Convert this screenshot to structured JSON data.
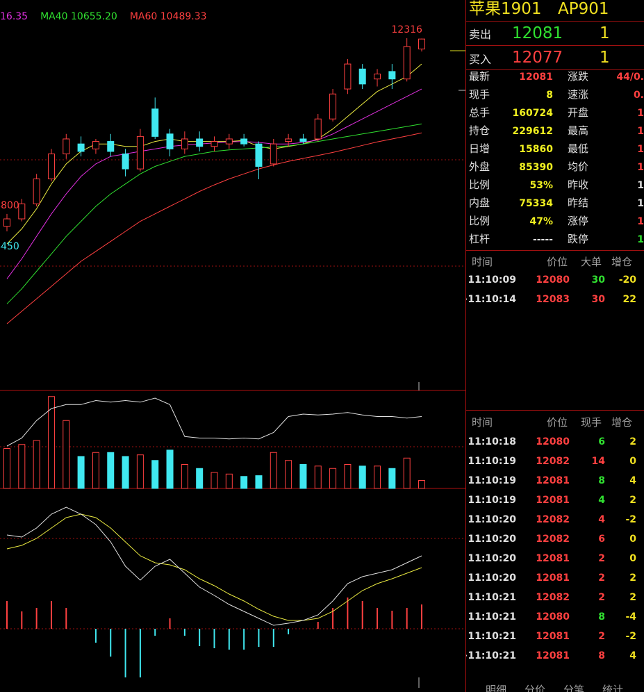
{
  "price_panel": {
    "ma_labels": [
      {
        "text": "16.35",
        "color": "#e030e0"
      },
      {
        "text": "MA40 10655.20",
        "color": "#30e030"
      },
      {
        "text": "MA60 10489.33",
        "color": "#ff4040"
      }
    ],
    "ylim": [
      5293,
      13081
    ],
    "candles": [
      {
        "open": 8550,
        "close": 8700,
        "high": 8800,
        "low": 8450
      },
      {
        "open": 8700,
        "close": 9000,
        "high": 9100,
        "low": 8650
      },
      {
        "open": 9000,
        "close": 9500,
        "high": 9600,
        "low": 8950
      },
      {
        "open": 9500,
        "close": 10000,
        "high": 10100,
        "low": 9450
      },
      {
        "open": 10000,
        "close": 10300,
        "high": 10400,
        "low": 9900
      },
      {
        "open": 10200,
        "close": 10050,
        "high": 10350,
        "low": 9950
      },
      {
        "open": 10100,
        "close": 10250,
        "high": 10300,
        "low": 10000
      },
      {
        "open": 10250,
        "close": 10050,
        "high": 10400,
        "low": 9950
      },
      {
        "open": 10000,
        "close": 9700,
        "high": 10100,
        "low": 9550
      },
      {
        "open": 9700,
        "close": 10350,
        "high": 10500,
        "low": 9650
      },
      {
        "open": 10900,
        "close": 10350,
        "high": 11129,
        "low": 10300
      },
      {
        "open": 10400,
        "close": 10100,
        "high": 10500,
        "low": 9950
      },
      {
        "open": 10100,
        "close": 10300,
        "high": 10450,
        "low": 10000
      },
      {
        "open": 10300,
        "close": 10150,
        "high": 10450,
        "low": 10050
      },
      {
        "open": 10150,
        "close": 10250,
        "high": 10350,
        "low": 10050
      },
      {
        "open": 10200,
        "close": 10300,
        "high": 10400,
        "low": 10100
      },
      {
        "open": 10300,
        "close": 10200,
        "high": 10400,
        "low": 10150
      },
      {
        "open": 10200,
        "close": 9750,
        "high": 10250,
        "low": 9493
      },
      {
        "open": 9800,
        "close": 10200,
        "high": 10300,
        "low": 9750
      },
      {
        "open": 10250,
        "close": 10300,
        "high": 10400,
        "low": 10150
      },
      {
        "open": 10300,
        "close": 10250,
        "high": 10400,
        "low": 10200
      },
      {
        "open": 10300,
        "close": 10700,
        "high": 10800,
        "low": 10250
      },
      {
        "open": 10700,
        "close": 11200,
        "high": 11300,
        "low": 10650
      },
      {
        "open": 11300,
        "close": 11800,
        "high": 11900,
        "low": 11200
      },
      {
        "open": 11700,
        "close": 11400,
        "high": 11800,
        "low": 11300
      },
      {
        "open": 11500,
        "close": 11600,
        "high": 11700,
        "low": 11350
      },
      {
        "open": 11650,
        "close": 11500,
        "high": 11800,
        "low": 11300
      },
      {
        "open": 11500,
        "close": 12150,
        "high": 12316,
        "low": 11450
      },
      {
        "open": 12100,
        "close": 12300,
        "high": 12310,
        "low": 12050
      }
    ],
    "ma_series": [
      {
        "color": "#e8e840",
        "values": [
          8200,
          8500,
          8900,
          9400,
          9800,
          10050,
          10200,
          10200,
          10150,
          10150,
          10250,
          10300,
          10250,
          10250,
          10250,
          10250,
          10270,
          10150,
          10100,
          10150,
          10200,
          10300,
          10500,
          10750,
          11000,
          11250,
          11400,
          11550,
          11800
        ]
      },
      {
        "color": "#e030e0",
        "values": [
          7500,
          7900,
          8350,
          8800,
          9200,
          9550,
          9800,
          9950,
          10000,
          10050,
          10100,
          10150,
          10180,
          10200,
          10220,
          10240,
          10250,
          10230,
          10200,
          10200,
          10230,
          10280,
          10400,
          10550,
          10700,
          10850,
          11000,
          11150,
          11300
        ]
      },
      {
        "color": "#30e030",
        "values": [
          7000,
          7300,
          7650,
          8000,
          8350,
          8650,
          8950,
          9200,
          9400,
          9600,
          9750,
          9850,
          9950,
          10000,
          10050,
          10080,
          10100,
          10120,
          10140,
          10160,
          10200,
          10250,
          10300,
          10350,
          10400,
          10450,
          10500,
          10550,
          10600
        ]
      },
      {
        "color": "#ff4040",
        "values": [
          6600,
          6850,
          7100,
          7350,
          7600,
          7850,
          8050,
          8250,
          8450,
          8650,
          8800,
          8950,
          9100,
          9250,
          9380,
          9500,
          9600,
          9700,
          9780,
          9850,
          9910,
          9970,
          10030,
          10100,
          10170,
          10240,
          10300,
          10360,
          10420
        ]
      }
    ]
  },
  "volume_panel": {
    "ylim": [
      0,
      120
    ],
    "values": [
      50,
      55,
      60,
      115,
      85,
      40,
      45,
      45,
      40,
      42,
      35,
      48,
      30,
      25,
      20,
      18,
      15,
      16,
      45,
      35,
      30,
      28,
      25,
      30,
      28,
      28,
      25,
      38,
      10
    ],
    "line": [
      53,
      63,
      85,
      100,
      105,
      105,
      110,
      108,
      110,
      108,
      113,
      105,
      65,
      63,
      63,
      62,
      63,
      62,
      70,
      90,
      93,
      92,
      93,
      95,
      92,
      90,
      90,
      88,
      90
    ]
  },
  "macd_panel": {
    "ylim": [
      -85,
      200
    ],
    "dif": [
      135,
      132,
      145,
      165,
      175,
      165,
      150,
      125,
      90,
      70,
      90,
      100,
      80,
      60,
      48,
      35,
      25,
      15,
      5,
      8,
      12,
      20,
      40,
      65,
      75,
      80,
      85,
      95,
      105
    ],
    "dea": [
      115,
      120,
      130,
      145,
      160,
      165,
      160,
      145,
      125,
      105,
      95,
      92,
      85,
      72,
      62,
      50,
      40,
      28,
      18,
      12,
      12,
      15,
      25,
      40,
      55,
      65,
      72,
      80,
      88
    ],
    "hist": [
      40,
      25,
      30,
      40,
      30,
      0,
      -20,
      -40,
      -70,
      -70,
      -10,
      15,
      -10,
      -25,
      -28,
      -30,
      -30,
      -26,
      -26,
      -8,
      0,
      10,
      30,
      45,
      40,
      30,
      26,
      30,
      35
    ]
  },
  "quote": {
    "name": "苹果1901",
    "code": "AP901",
    "sell": {
      "label": "卖出",
      "price": "12081",
      "qty": "1"
    },
    "buy": {
      "label": "买入",
      "price": "12077",
      "qty": "1"
    },
    "left": [
      {
        "label": "最新",
        "value": "12081",
        "color": "#ff4040"
      },
      {
        "label": "现手",
        "value": "8",
        "color": "#f0f020"
      },
      {
        "label": "总手",
        "value": "160724",
        "color": "#f0f020"
      },
      {
        "label": "持仓",
        "value": "229612",
        "color": "#f0f020"
      },
      {
        "label": "日增",
        "value": "15860",
        "color": "#f0f020"
      },
      {
        "label": "外盘",
        "value": "85390",
        "color": "#f0f020"
      },
      {
        "label": "比例",
        "value": "53%",
        "color": "#f0f020"
      },
      {
        "label": "内盘",
        "value": "75334",
        "color": "#f0f020"
      },
      {
        "label": "比例",
        "value": "47%",
        "color": "#f0f020"
      },
      {
        "label": "杠杆",
        "value": "-----",
        "color": "#e0e0e0"
      }
    ],
    "right": [
      {
        "label": "涨跌",
        "value": "44/0.",
        "color": "#ff4040"
      },
      {
        "label": "速涨",
        "value": "0.",
        "color": "#ff4040"
      },
      {
        "label": "开盘",
        "value": "1",
        "color": "#ff4040"
      },
      {
        "label": "最高",
        "value": "1",
        "color": "#ff4040"
      },
      {
        "label": "最低",
        "value": "1",
        "color": "#ff4040"
      },
      {
        "label": "均价",
        "value": "1",
        "color": "#ff4040"
      },
      {
        "label": "昨收",
        "value": "1",
        "color": "#e0e0e0"
      },
      {
        "label": "昨结",
        "value": "1",
        "color": "#e0e0e0"
      },
      {
        "label": "涨停",
        "value": "1",
        "color": "#ff4040"
      },
      {
        "label": "跌停",
        "value": "1",
        "color": "#30e030"
      }
    ]
  },
  "big_trades": {
    "header": [
      "时间",
      "价位",
      "大单",
      "增仓"
    ],
    "rows": [
      {
        "time": "11:10:09",
        "price": "12080",
        "vol": "30",
        "vol_color": "#30e030",
        "oi": "-20"
      },
      {
        "time": ">11:10:14",
        "price": "12083",
        "vol": "30",
        "vol_color": "#ff4040",
        "oi": "22"
      }
    ]
  },
  "trades": {
    "header": [
      "时间",
      "价位",
      "现手",
      "增仓"
    ],
    "rows": [
      {
        "time": "11:10:18",
        "price": "12080",
        "vol": "6",
        "vol_color": "#30e030",
        "oi": "2"
      },
      {
        "time": "11:10:19",
        "price": "12082",
        "vol": "14",
        "vol_color": "#ff4040",
        "oi": "0"
      },
      {
        "time": "11:10:19",
        "price": "12081",
        "vol": "8",
        "vol_color": "#30e030",
        "oi": "4"
      },
      {
        "time": "11:10:19",
        "price": "12081",
        "vol": "4",
        "vol_color": "#30e030",
        "oi": "2"
      },
      {
        "time": "11:10:20",
        "price": "12082",
        "vol": "4",
        "vol_color": "#ff4040",
        "oi": "-2"
      },
      {
        "time": "11:10:20",
        "price": "12082",
        "vol": "6",
        "vol_color": "#ff4040",
        "oi": "0"
      },
      {
        "time": "11:10:20",
        "price": "12081",
        "vol": "2",
        "vol_color": "#ff4040",
        "oi": "0"
      },
      {
        "time": "11:10:20",
        "price": "12081",
        "vol": "2",
        "vol_color": "#ff4040",
        "oi": "2"
      },
      {
        "time": "11:10:21",
        "price": "12082",
        "vol": "2",
        "vol_color": "#ff4040",
        "oi": "2"
      },
      {
        "time": "11:10:21",
        "price": "12080",
        "vol": "8",
        "vol_color": "#30e030",
        "oi": "-4"
      },
      {
        "time": "11:10:21",
        "price": "12081",
        "vol": "2",
        "vol_color": "#ff4040",
        "oi": "-2"
      },
      {
        "time": ">11:10:21",
        "price": "12081",
        "vol": "8",
        "vol_color": "#ff4040",
        "oi": "4"
      }
    ]
  },
  "tabs": [
    "明细",
    "分价",
    "分笔",
    "统计"
  ]
}
